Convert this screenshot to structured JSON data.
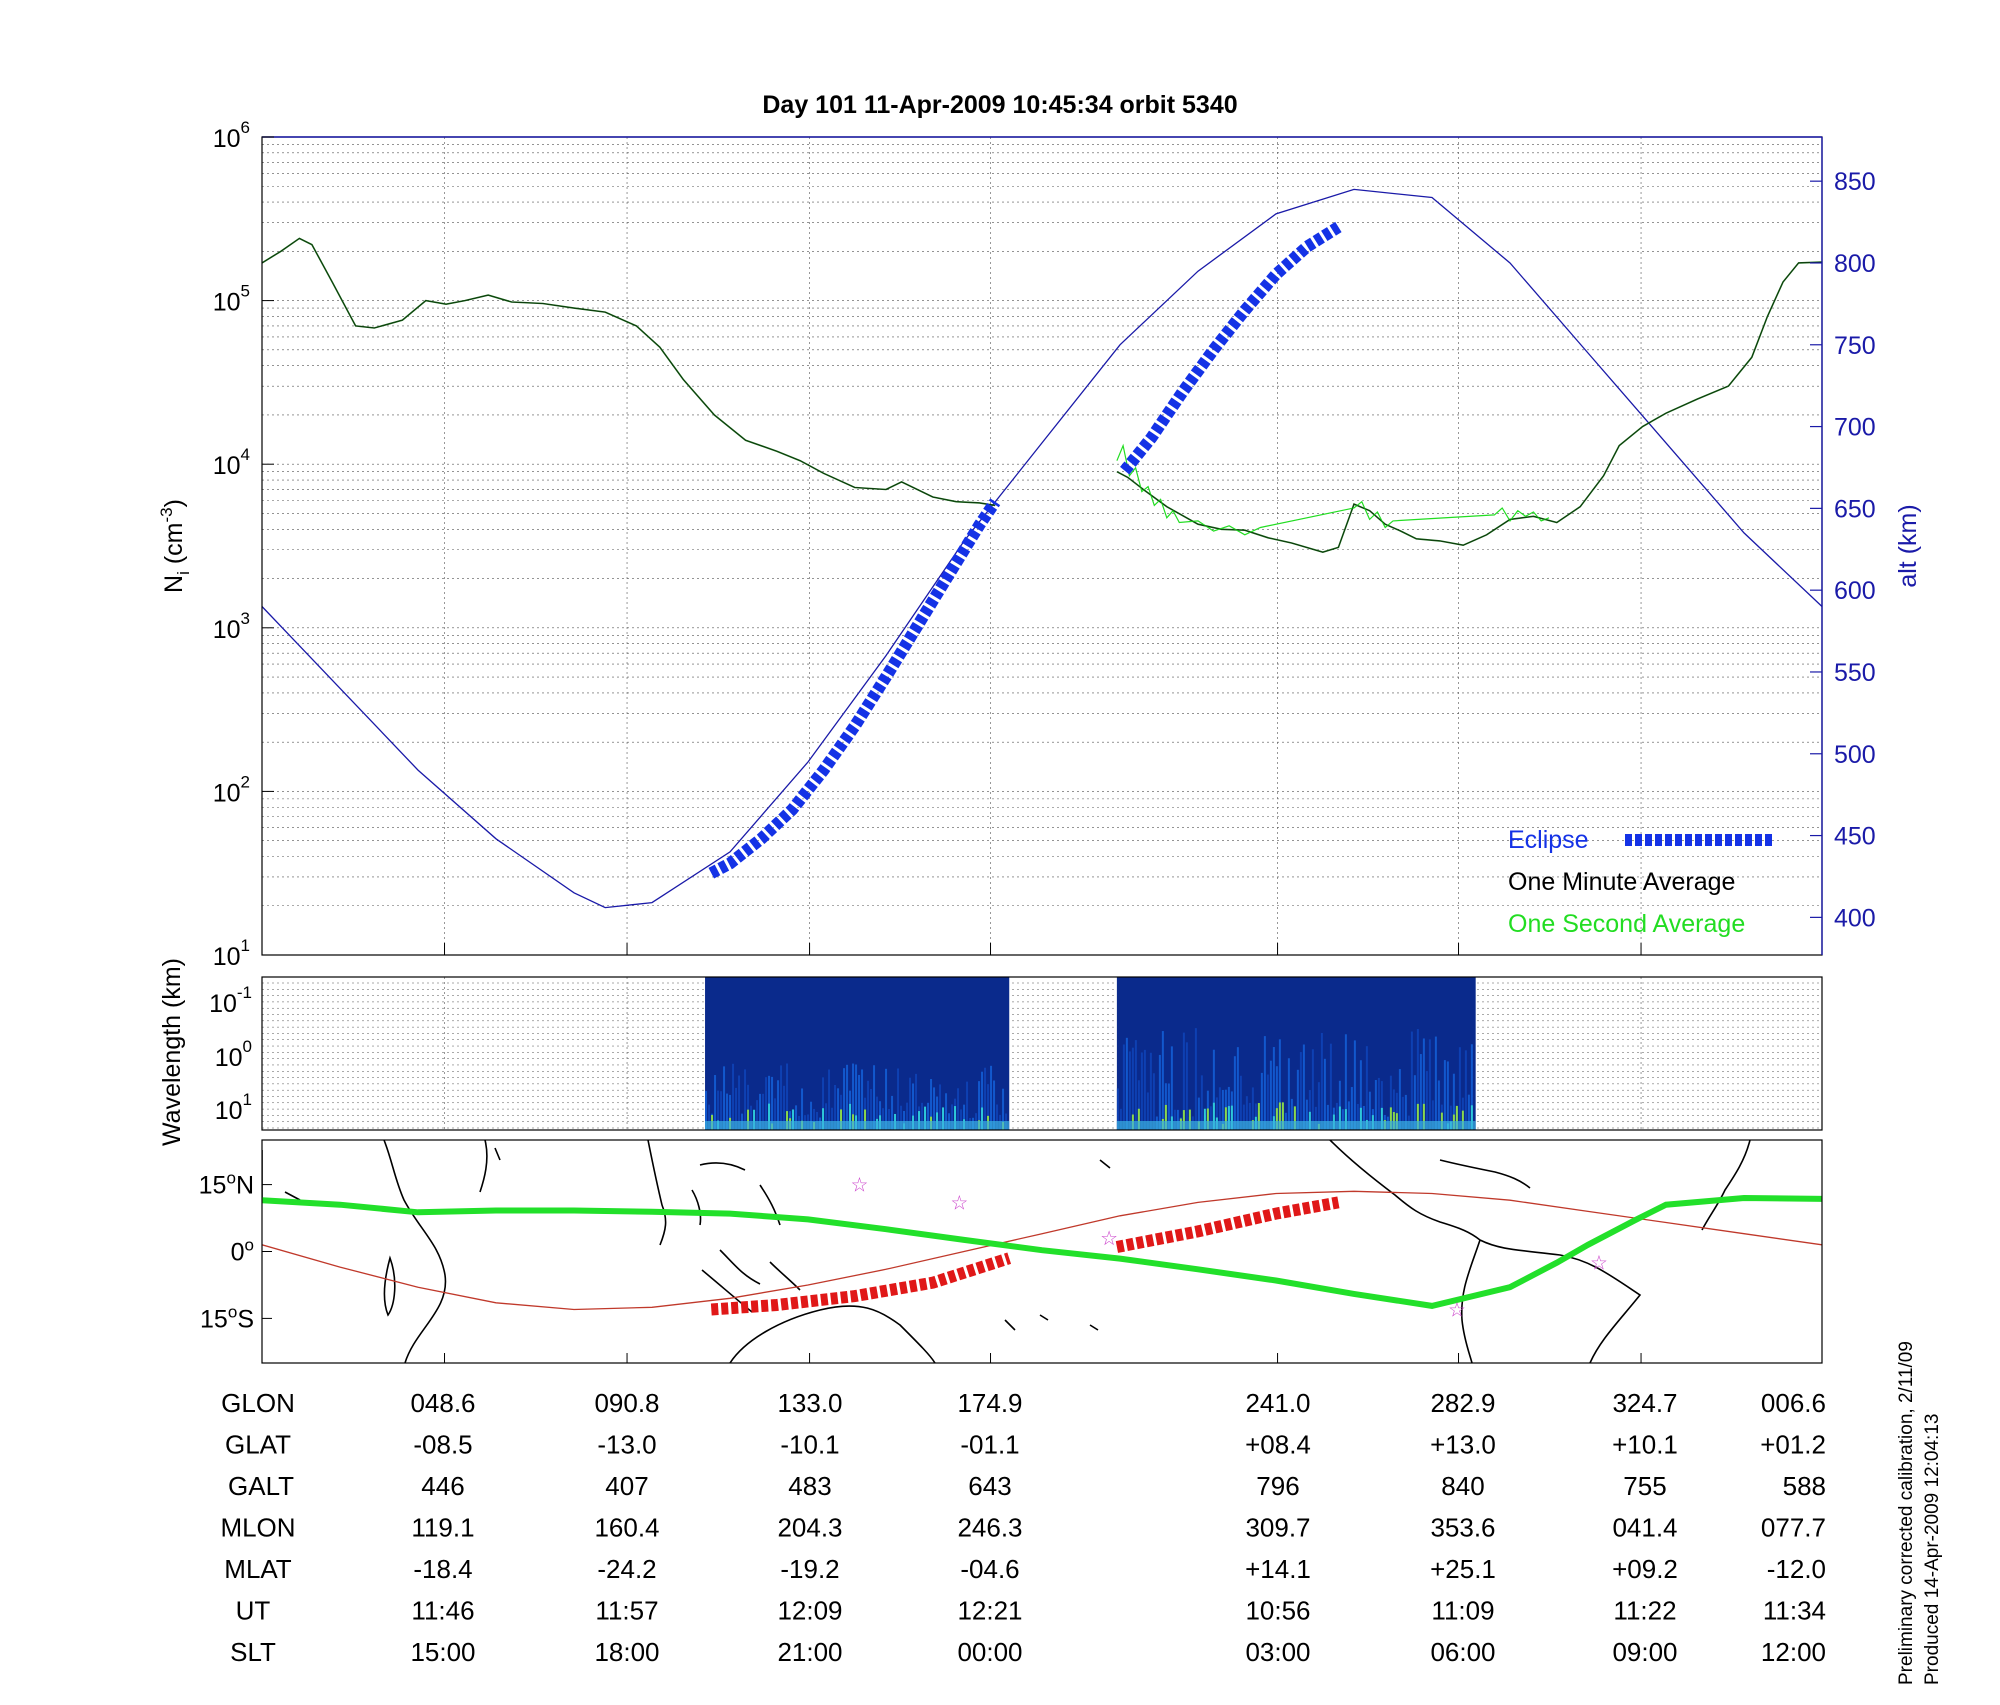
{
  "title": "Day 101  11-Apr-2009 10:45:34   orbit 5340",
  "side_note": {
    "line1": "Preliminary corrected calibration, 2/11/09",
    "line2": "Produced 14-Apr-2009 12:04:13"
  },
  "colors": {
    "alt": "#1a1aa8",
    "eclipse": "#1432e6",
    "minute": "#000000",
    "second": "#22dd22",
    "track": "#22e02a",
    "trace": "#c0392b",
    "eclipse_map": "#e01818",
    "star": "#cc44cc",
    "spectro_bg": "#0a2a8c"
  },
  "chart_data": [
    {
      "type": "line",
      "panel": "density",
      "ylabel_main": "N",
      "ylabel_sub": "i",
      "ylabel_rest": " (cm",
      "ylabel_sup": "-3",
      "ylabel_close": ")",
      "yscale": "log",
      "ylim": [
        10,
        1000000
      ],
      "y_ticks": [
        {
          "base": "10",
          "exp": "1"
        },
        {
          "base": "10",
          "exp": "2"
        },
        {
          "base": "10",
          "exp": "3"
        },
        {
          "base": "10",
          "exp": "4"
        },
        {
          "base": "10",
          "exp": "5"
        },
        {
          "base": "10",
          "exp": "6"
        }
      ],
      "y2label": "alt (km)",
      "y2lim": [
        377,
        877
      ],
      "y2_ticks": [
        "400",
        "450",
        "500",
        "550",
        "600",
        "650",
        "700",
        "750",
        "800",
        "850"
      ],
      "xlim": [
        0,
        1
      ],
      "grid": true,
      "legend": [
        {
          "label": "Eclipse",
          "key": "eclipse"
        },
        {
          "label": "One Minute Average",
          "key": "minute"
        },
        {
          "label": "One Second Average",
          "key": "second"
        }
      ],
      "legend_position": "bottom-right",
      "series": [
        {
          "key": "minute",
          "x": [
            0,
            0.012,
            0.024,
            0.032,
            0.045,
            0.06,
            0.072,
            0.09,
            0.105,
            0.118,
            0.13,
            0.145,
            0.16,
            0.18,
            0.2,
            0.22,
            0.24,
            0.255,
            0.27,
            0.29,
            0.31,
            0.33,
            0.345,
            0.36,
            0.38,
            0.4,
            0.41,
            0.43,
            0.445,
            0.46,
            0.47
          ],
          "y": [
            170000,
            200000,
            240000,
            220000,
            130000,
            70000,
            68000,
            76000,
            100000,
            95000,
            100000,
            108000,
            98000,
            96000,
            90000,
            85000,
            70000,
            52000,
            33000,
            20000,
            14000,
            12000,
            10500,
            8800,
            7200,
            7000,
            7800,
            6300,
            5900,
            5800,
            5600
          ]
        },
        {
          "key": "minute",
          "x": [
            0.548,
            0.555,
            0.565,
            0.58,
            0.6,
            0.615,
            0.63,
            0.645,
            0.66,
            0.68,
            0.69,
            0.7,
            0.71,
            0.72,
            0.73,
            0.74,
            0.755,
            0.77,
            0.785,
            0.8,
            0.815,
            0.83,
            0.845,
            0.86,
            0.87,
            0.885,
            0.9,
            0.92,
            0.94,
            0.955,
            0.965,
            0.975,
            0.985,
            1.0
          ],
          "y": [
            9000,
            8300,
            7000,
            5500,
            4300,
            4000,
            3950,
            3550,
            3300,
            2900,
            3100,
            5700,
            5200,
            4300,
            3900,
            3500,
            3400,
            3200,
            3700,
            4600,
            4800,
            4400,
            5500,
            8500,
            13000,
            17000,
            20500,
            25000,
            30000,
            45000,
            80000,
            130000,
            170000,
            172000
          ]
        },
        {
          "key": "second",
          "x": [
            0.548,
            0.552,
            0.556,
            0.56,
            0.564,
            0.568,
            0.572,
            0.576,
            0.58,
            0.584,
            0.588,
            0.6,
            0.61,
            0.62,
            0.63,
            0.64,
            0.7,
            0.705,
            0.71,
            0.715,
            0.72,
            0.725,
            0.79,
            0.795,
            0.8,
            0.805,
            0.81,
            0.815,
            0.82,
            0.825
          ],
          "y": [
            10500,
            13000,
            8500,
            9500,
            6800,
            7300,
            5600,
            6100,
            4700,
            5200,
            4400,
            4500,
            3900,
            4200,
            3700,
            4100,
            5400,
            5900,
            4600,
            5100,
            4100,
            4500,
            4900,
            5400,
            4500,
            5200,
            4800,
            5100,
            4500,
            4700
          ]
        }
      ],
      "altitude": {
        "key": "alt",
        "x": [
          0,
          0.05,
          0.1,
          0.15,
          0.2,
          0.22,
          0.25,
          0.3,
          0.35,
          0.4,
          0.45,
          0.5,
          0.55,
          0.6,
          0.65,
          0.7,
          0.75,
          0.8,
          0.85,
          0.9,
          0.95,
          1.0
        ],
        "y": [
          590,
          540,
          490,
          448,
          415,
          406,
          409,
          440,
          495,
          560,
          630,
          690,
          750,
          795,
          830,
          845,
          840,
          800,
          745,
          690,
          635,
          590
        ]
      },
      "eclipse_segments": [
        {
          "x": [
            0.288,
            0.3,
            0.32,
            0.34,
            0.36,
            0.38,
            0.4,
            0.42,
            0.44,
            0.46,
            0.47
          ],
          "y": [
            427,
            433,
            448,
            466,
            490,
            517,
            547,
            578,
            609,
            640,
            654
          ]
        },
        {
          "x": [
            0.553,
            0.57,
            0.59,
            0.61,
            0.63,
            0.65,
            0.67,
            0.69
          ],
          "y": [
            673,
            693,
            721,
            747,
            771,
            793,
            810,
            822
          ]
        }
      ]
    },
    {
      "type": "heatmap",
      "panel": "spectrogram",
      "ylabel": "Wavelength (km)",
      "y_ticks": [
        {
          "base": "10",
          "exp": "-1"
        },
        {
          "base": "10",
          "exp": "0"
        },
        {
          "base": "10",
          "exp": "1"
        }
      ],
      "grid": true,
      "active_ranges": [
        [
          0.284,
          0.479
        ],
        [
          0.548,
          0.778
        ]
      ]
    },
    {
      "type": "line",
      "panel": "map",
      "xlim": [
        0,
        1
      ],
      "ylim": [
        -25,
        25
      ],
      "y_ticks": [
        {
          "label": "15",
          "deg": "o",
          "hemi": "N",
          "value": 15
        },
        {
          "label": "0",
          "deg": "o",
          "hemi": "",
          "value": 0
        },
        {
          "label": "15",
          "deg": "o",
          "hemi": "S",
          "value": -15
        }
      ],
      "track": {
        "x": [
          0,
          0.05,
          0.1,
          0.15,
          0.2,
          0.25,
          0.3,
          0.35,
          0.4,
          0.45,
          0.5,
          0.55,
          0.6,
          0.65,
          0.7,
          0.75,
          0.8,
          0.83,
          0.85,
          0.88,
          0.9,
          0.95,
          1.0
        ],
        "y": [
          11.5,
          10.5,
          8.8,
          9.2,
          9.2,
          8.9,
          8.5,
          7.2,
          5.0,
          2.6,
          0.3,
          -1.6,
          -4.0,
          -6.5,
          -9.5,
          -12.2,
          -8.0,
          -2.5,
          1.5,
          7.0,
          10.5,
          12.0,
          11.8
        ]
      },
      "trace": {
        "x": [
          0,
          0.05,
          0.1,
          0.15,
          0.2,
          0.25,
          0.3,
          0.35,
          0.4,
          0.45,
          0.5,
          0.55,
          0.6,
          0.65,
          0.7,
          0.75,
          0.8,
          0.85,
          0.9,
          0.95,
          1.0
        ],
        "y": [
          1.5,
          -3.5,
          -8.0,
          -11.5,
          -13.0,
          -12.5,
          -10.5,
          -7.5,
          -4.0,
          0.0,
          4.0,
          8.0,
          11.0,
          13.0,
          13.5,
          13.0,
          11.5,
          9.0,
          6.5,
          4.0,
          1.5
        ]
      },
      "eclipse_segments": [
        {
          "x": [
            0.288,
            0.33,
            0.38,
            0.43,
            0.479
          ],
          "y": [
            -13.0,
            -12.0,
            -10.0,
            -7.0,
            -1.5
          ]
        },
        {
          "x": [
            0.548,
            0.6,
            0.65,
            0.69
          ],
          "y": [
            1.0,
            4.5,
            8.5,
            11.0
          ]
        }
      ],
      "stars": [
        {
          "x": 0.383,
          "y": 15.0
        },
        {
          "x": 0.447,
          "y": 11.0
        },
        {
          "x": 0.543,
          "y": 3.0
        },
        {
          "x": 0.766,
          "y": -13.0
        },
        {
          "x": 0.857,
          "y": -2.5
        }
      ]
    }
  ],
  "table": {
    "rows": [
      {
        "label": "GLON",
        "values": [
          "048.6",
          "090.8",
          "133.0",
          "174.9",
          "241.0",
          "282.9",
          "324.7",
          "006.6"
        ]
      },
      {
        "label": "GLAT",
        "values": [
          "-08.5",
          "-13.0",
          "-10.1",
          "-01.1",
          "+08.4",
          "+13.0",
          "+10.1",
          "+01.2"
        ]
      },
      {
        "label": "GALT",
        "values": [
          "446",
          "407",
          "483",
          "643",
          "796",
          "840",
          "755",
          "588"
        ]
      },
      {
        "label": "MLON",
        "values": [
          "119.1",
          "160.4",
          "204.3",
          "246.3",
          "309.7",
          "353.6",
          "041.4",
          "077.7"
        ]
      },
      {
        "label": "MLAT",
        "values": [
          "-18.4",
          "-24.2",
          "-19.2",
          "-04.6",
          "+14.1",
          "+25.1",
          "+09.2",
          "-12.0"
        ]
      },
      {
        "label": "UT",
        "values": [
          "11:46",
          "11:57",
          "12:09",
          "12:21",
          "10:56",
          "11:09",
          "11:22",
          "11:34"
        ]
      },
      {
        "label": "SLT",
        "values": [
          "15:00",
          "18:00",
          "21:00",
          "00:00",
          "03:00",
          "06:00",
          "09:00",
          "12:00"
        ]
      }
    ]
  }
}
